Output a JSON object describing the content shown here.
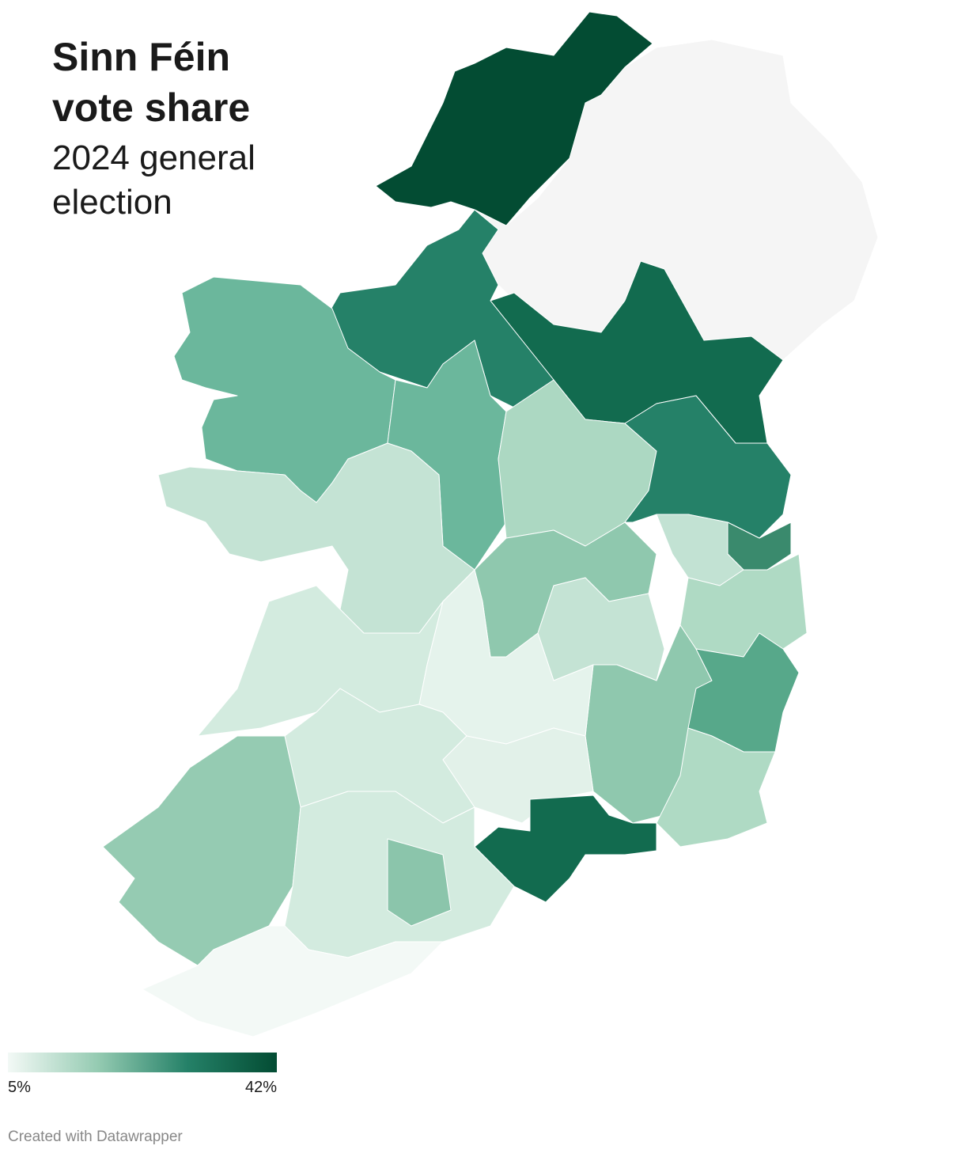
{
  "chart_data": {
    "type": "choropleth",
    "title": "Sinn Féin vote share",
    "subtitle": "2024 general election",
    "legend": {
      "colors": [
        "#f3f9f6",
        "#95cbb2",
        "#258168",
        "#034c33"
      ],
      "ticks": [
        {
          "value": 5,
          "label": "5%"
        },
        {
          "value": 42,
          "label": "42%"
        }
      ]
    },
    "credit": "Created with Datawrapper"
  }
}
